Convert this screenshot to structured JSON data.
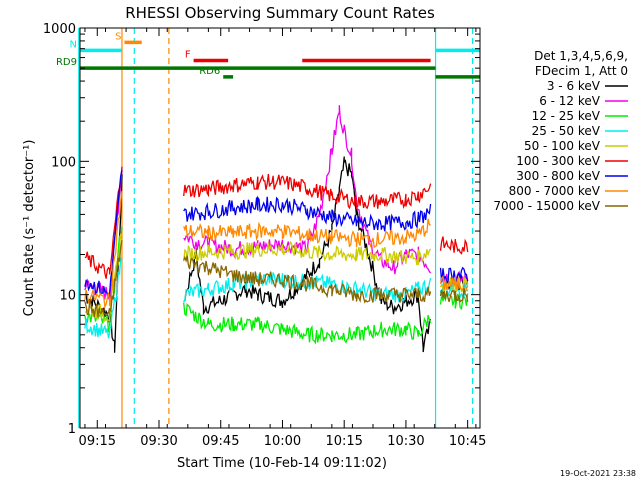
{
  "chart_data": {
    "type": "line",
    "title": "RHESSI Observing Summary Count Rates",
    "xlabel": "Start Time (10-Feb-14 09:11:02)",
    "ylabel": "Count Rate (s⁻¹ detector⁻¹)",
    "yscale": "log",
    "xlim": [
      9.18,
      10.8
    ],
    "ylim": [
      1,
      1000
    ],
    "x_ticks": [
      {
        "t": 9.25,
        "label": "09:15"
      },
      {
        "t": 9.5,
        "label": "09:30"
      },
      {
        "t": 9.75,
        "label": "09:45"
      },
      {
        "t": 10.0,
        "label": "10:00"
      },
      {
        "t": 10.25,
        "label": "10:15"
      },
      {
        "t": 10.5,
        "label": "10:30"
      },
      {
        "t": 10.75,
        "label": "10:45"
      }
    ],
    "y_ticks": [
      {
        "v": 1,
        "label": "1"
      },
      {
        "v": 10,
        "label": "10"
      },
      {
        "v": 100,
        "label": "100"
      },
      {
        "v": 1000,
        "label": "1000"
      }
    ],
    "legend_header": [
      "Det 1,3,4,5,6,9,",
      "FDecim 1, Att 0"
    ],
    "series": [
      {
        "name": "3 - 6 keV",
        "color": "#000000",
        "values": [
          [
            9.2,
            10
          ],
          [
            9.3,
            7
          ],
          [
            9.32,
            4
          ],
          [
            9.35,
            70
          ],
          [
            9.43,
            null
          ],
          [
            9.6,
            9
          ],
          [
            9.65,
            20
          ],
          [
            9.68,
            8
          ],
          [
            9.75,
            9
          ],
          [
            9.85,
            11
          ],
          [
            9.9,
            10
          ],
          [
            10.0,
            9
          ],
          [
            10.05,
            11
          ],
          [
            10.1,
            14
          ],
          [
            10.15,
            18
          ],
          [
            10.2,
            30
          ],
          [
            10.23,
            60
          ],
          [
            10.25,
            95
          ],
          [
            10.28,
            80
          ],
          [
            10.3,
            40
          ],
          [
            10.35,
            20
          ],
          [
            10.4,
            9
          ],
          [
            10.45,
            8
          ],
          [
            10.5,
            9
          ],
          [
            10.55,
            10
          ],
          [
            10.57,
            4
          ],
          [
            10.6,
            6
          ],
          [
            10.63,
            null
          ],
          [
            10.64,
            11
          ],
          [
            10.68,
            12
          ],
          [
            10.7,
            12
          ],
          [
            10.75,
            12
          ]
        ]
      },
      {
        "name": "6 - 12 keV",
        "color": "#ee00ee",
        "values": [
          [
            9.2,
            12
          ],
          [
            9.3,
            10
          ],
          [
            9.35,
            90
          ],
          [
            9.43,
            null
          ],
          [
            9.6,
            28
          ],
          [
            9.65,
            25
          ],
          [
            9.7,
            24
          ],
          [
            9.8,
            22
          ],
          [
            9.9,
            23
          ],
          [
            10.0,
            24
          ],
          [
            10.1,
            22
          ],
          [
            10.15,
            40
          ],
          [
            10.2,
            120
          ],
          [
            10.23,
            240
          ],
          [
            10.25,
            170
          ],
          [
            10.28,
            110
          ],
          [
            10.3,
            50
          ],
          [
            10.35,
            25
          ],
          [
            10.4,
            18
          ],
          [
            10.45,
            16
          ],
          [
            10.5,
            20
          ],
          [
            10.55,
            20
          ],
          [
            10.6,
            16
          ],
          [
            10.63,
            null
          ],
          [
            10.64,
            14
          ],
          [
            10.7,
            13
          ],
          [
            10.75,
            13
          ]
        ]
      },
      {
        "name": "12 - 25 keV",
        "color": "#00ee00",
        "values": [
          [
            9.2,
            7
          ],
          [
            9.3,
            6
          ],
          [
            9.35,
            35
          ],
          [
            9.43,
            null
          ],
          [
            9.6,
            8
          ],
          [
            9.7,
            6
          ],
          [
            9.8,
            6
          ],
          [
            9.9,
            6
          ],
          [
            10.0,
            5.5
          ],
          [
            10.1,
            5
          ],
          [
            10.2,
            5
          ],
          [
            10.3,
            5
          ],
          [
            10.4,
            5.5
          ],
          [
            10.5,
            5.5
          ],
          [
            10.55,
            5
          ],
          [
            10.6,
            7
          ],
          [
            10.63,
            null
          ],
          [
            10.64,
            9
          ],
          [
            10.7,
            9
          ],
          [
            10.75,
            9
          ]
        ]
      },
      {
        "name": "25 - 50 keV",
        "color": "#00eeee",
        "values": [
          [
            9.2,
            6
          ],
          [
            9.3,
            5
          ],
          [
            9.35,
            20
          ],
          [
            9.43,
            null
          ],
          [
            9.6,
            10
          ],
          [
            9.7,
            11
          ],
          [
            9.8,
            12
          ],
          [
            9.9,
            13
          ],
          [
            10.0,
            13
          ],
          [
            10.1,
            12.5
          ],
          [
            10.2,
            12
          ],
          [
            10.3,
            11
          ],
          [
            10.4,
            10
          ],
          [
            10.5,
            10
          ],
          [
            10.55,
            11
          ],
          [
            10.6,
            12
          ],
          [
            10.63,
            null
          ],
          [
            10.64,
            11
          ],
          [
            10.7,
            11
          ],
          [
            10.75,
            11
          ]
        ]
      },
      {
        "name": "50 - 100 keV",
        "color": "#cccc00",
        "values": [
          [
            9.2,
            8
          ],
          [
            9.3,
            7
          ],
          [
            9.35,
            30
          ],
          [
            9.43,
            null
          ],
          [
            9.6,
            20
          ],
          [
            9.7,
            21
          ],
          [
            9.8,
            21
          ],
          [
            9.9,
            22
          ],
          [
            10.0,
            22
          ],
          [
            10.1,
            21
          ],
          [
            10.2,
            20
          ],
          [
            10.3,
            20
          ],
          [
            10.4,
            20
          ],
          [
            10.5,
            19
          ],
          [
            10.55,
            19
          ],
          [
            10.6,
            22
          ],
          [
            10.63,
            null
          ],
          [
            10.64,
            12
          ],
          [
            10.7,
            12
          ],
          [
            10.75,
            12
          ]
        ]
      },
      {
        "name": "100 - 300 keV",
        "color": "#ee0000",
        "values": [
          [
            9.2,
            19
          ],
          [
            9.3,
            14
          ],
          [
            9.35,
            100
          ],
          [
            9.43,
            null
          ],
          [
            9.6,
            60
          ],
          [
            9.7,
            62
          ],
          [
            9.8,
            66
          ],
          [
            9.9,
            70
          ],
          [
            10.0,
            70
          ],
          [
            10.1,
            63
          ],
          [
            10.2,
            55
          ],
          [
            10.3,
            50
          ],
          [
            10.4,
            50
          ],
          [
            10.5,
            52
          ],
          [
            10.55,
            56
          ],
          [
            10.6,
            65
          ],
          [
            10.63,
            null
          ],
          [
            10.64,
            24
          ],
          [
            10.7,
            23
          ],
          [
            10.75,
            23
          ]
        ]
      },
      {
        "name": "300 - 800 keV",
        "color": "#0000ee",
        "values": [
          [
            9.2,
            13
          ],
          [
            9.3,
            10
          ],
          [
            9.35,
            90
          ],
          [
            9.43,
            null
          ],
          [
            9.6,
            40
          ],
          [
            9.7,
            42
          ],
          [
            9.8,
            45
          ],
          [
            9.9,
            47
          ],
          [
            10.0,
            48
          ],
          [
            10.1,
            43
          ],
          [
            10.2,
            38
          ],
          [
            10.3,
            35
          ],
          [
            10.4,
            34
          ],
          [
            10.5,
            35
          ],
          [
            10.55,
            37
          ],
          [
            10.6,
            42
          ],
          [
            10.63,
            null
          ],
          [
            10.64,
            14
          ],
          [
            10.7,
            14
          ],
          [
            10.75,
            14
          ]
        ]
      },
      {
        "name": "800 - 7000 keV",
        "color": "#ff8800",
        "values": [
          [
            9.2,
            10
          ],
          [
            9.3,
            9
          ],
          [
            9.35,
            60
          ],
          [
            9.43,
            null
          ],
          [
            9.6,
            30
          ],
          [
            9.7,
            29
          ],
          [
            9.8,
            29
          ],
          [
            9.9,
            30
          ],
          [
            10.0,
            30
          ],
          [
            10.1,
            28
          ],
          [
            10.2,
            27
          ],
          [
            10.3,
            26
          ],
          [
            10.4,
            26
          ],
          [
            10.5,
            27
          ],
          [
            10.55,
            28
          ],
          [
            10.6,
            34
          ],
          [
            10.63,
            null
          ],
          [
            10.64,
            12
          ],
          [
            10.7,
            12
          ],
          [
            10.75,
            12
          ]
        ]
      },
      {
        "name": "7000 - 15000 keV",
        "color": "#886600",
        "values": [
          [
            9.2,
            8
          ],
          [
            9.3,
            7
          ],
          [
            9.35,
            25
          ],
          [
            9.43,
            null
          ],
          [
            9.6,
            18
          ],
          [
            9.7,
            16
          ],
          [
            9.8,
            14
          ],
          [
            9.9,
            13
          ],
          [
            10.0,
            13
          ],
          [
            10.1,
            12
          ],
          [
            10.2,
            11
          ],
          [
            10.3,
            10
          ],
          [
            10.4,
            10
          ],
          [
            10.5,
            10
          ],
          [
            10.55,
            10
          ],
          [
            10.6,
            10
          ],
          [
            10.63,
            null
          ],
          [
            10.64,
            10
          ],
          [
            10.7,
            10
          ],
          [
            10.75,
            10
          ]
        ]
      }
    ],
    "annotations": {
      "flags": [
        {
          "label": "S",
          "color": "#ff8800",
          "y": 780,
          "t0": 9.36,
          "t1": 9.43
        },
        {
          "label": "N",
          "color": "#00eeee",
          "y": 680,
          "t0": 9.18,
          "t1": 9.35
        },
        {
          "label": "",
          "color": "#00eeee",
          "y": 680,
          "t0": 10.62,
          "t1": 10.8
        },
        {
          "label": "F",
          "color": "#ee0000",
          "y": 570,
          "t0": 9.64,
          "t1": 9.78
        },
        {
          "label": "",
          "color": "#ee0000",
          "y": 570,
          "t0": 10.08,
          "t1": 10.6
        },
        {
          "label": "RD6",
          "color": "#007700",
          "y": 430,
          "t0": 9.76,
          "t1": 9.8
        },
        {
          "label": "RD9",
          "color": "#007700",
          "y": 500,
          "t0": 9.18,
          "t1": 10.62
        },
        {
          "label": "",
          "color": "#007700",
          "y": 430,
          "t0": 10.62,
          "t1": 10.8
        }
      ],
      "vlines": [
        {
          "t": 9.175,
          "color": "#00eeee",
          "style": "solid"
        },
        {
          "t": 9.35,
          "color": "#ff8800",
          "style": "solid"
        },
        {
          "t": 9.4,
          "color": "#00eeee",
          "style": "dashed"
        },
        {
          "t": 9.54,
          "color": "#ff8800",
          "style": "dashed"
        },
        {
          "t": 10.62,
          "color": "#00eeee",
          "style": "solid"
        },
        {
          "t": 10.77,
          "color": "#00eeee",
          "style": "dashed"
        }
      ]
    }
  },
  "footer": {
    "timestamp": "19-Oct-2021 23:38"
  }
}
